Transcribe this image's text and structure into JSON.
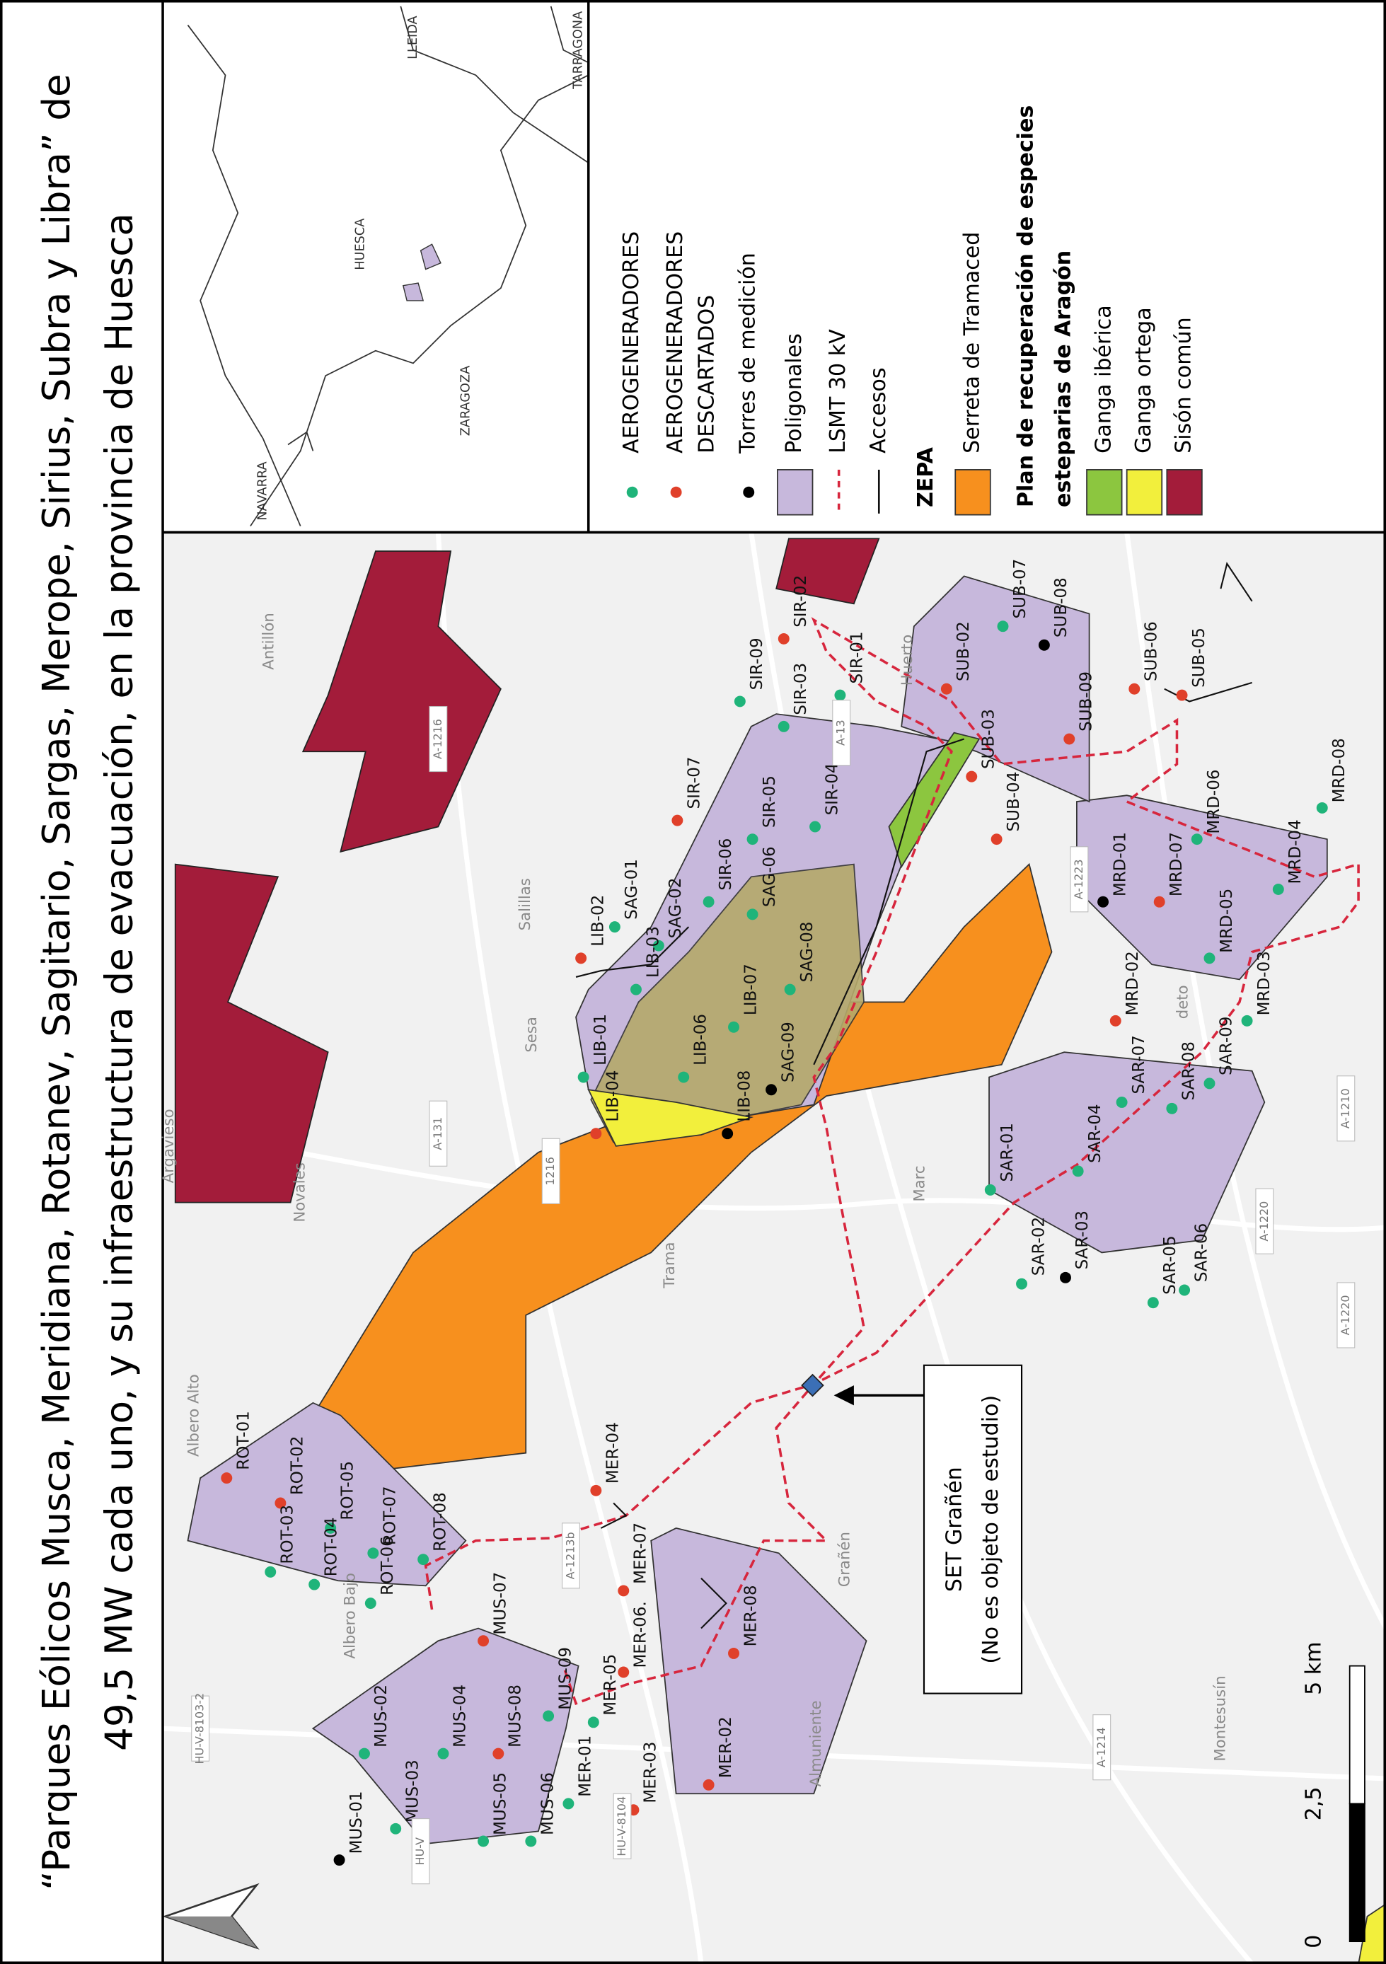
{
  "title": [
    "“Parques Eólicos Musca, Meridiana, Rotanev, Sagitario, Sargas, Merope, Sirius, Subra y Libra” de",
    "49,5 MW cada uno, y su infraestructura de evacuación, en la provincia de Huesca"
  ],
  "inset": {
    "labels": [
      "NAVARRA",
      "ZARAGOZA",
      "HUESCA",
      "LLEIDA",
      "TARRAGONA"
    ]
  },
  "legend": {
    "items": [
      "AEROGENERADORES",
      "AEROGENERADORES",
      "DESCARTADOS",
      "Torres de medición",
      "Poligonales",
      "LSMT 30 kV",
      "Accesos",
      "ZEPA",
      "Serreta de Tramaced",
      "Plan de recuperación de especies",
      "esteparias de Aragón",
      "Ganga ibérica",
      "Ganga ortega",
      "Sisón común"
    ]
  },
  "map": {
    "turbines": [
      "ROT-01",
      "ROT-02",
      "ROT-03",
      "ROT-05",
      "ROT-04",
      "ROT-07",
      "ROT-06",
      "ROT-08",
      "MUS-01",
      "MUS-02",
      "MUS-03",
      "MUS-04",
      "MUS-05",
      "MUS-06",
      "MUS-07",
      "MUS-08",
      "MUS-09",
      "MER-01",
      "MER-02",
      "MER-03",
      "MER-04",
      "MER-05",
      "MER-06.",
      "MER-07",
      "MER-08",
      "SAR-01",
      "SAR-02",
      "SAR-03",
      "SAR-04",
      "SAR-05",
      "SAR-06",
      "SAR-07",
      "SAR-08",
      "SAR-09",
      "MRD-01",
      "MRD-02",
      "MRD-03",
      "MRD-04",
      "MRD-05",
      "MRD-06",
      "MRD-07",
      "MRD-08",
      "SUB-02",
      "SUB-03",
      "SUB-04",
      "SUB-05",
      "SUB-06",
      "SUB-07",
      "SUB-08",
      "SUB-09",
      "SIR-01",
      "SIR-02",
      "SIR-03",
      "SIR-04",
      "SIR-05",
      "SIR-06",
      "SIR-07",
      "SIR-09",
      "SAG-01",
      "SAG-02",
      "SAG-06",
      "SAG-08",
      "SAG-09",
      "LIB-01",
      "LIB-02",
      "LIB-03",
      "LIB-04",
      "LIB-06",
      "LIB-07",
      "LIB-08"
    ],
    "places": [
      "Antillón",
      "Salillas",
      "Sesa",
      "Argavieso",
      "Novales",
      "Albero Alto",
      "Albero Bajo",
      "Trama",
      "Marc",
      "Huerto",
      "Grañén",
      "Almuniente",
      "Montesusín",
      "deto"
    ],
    "roads": [
      "A-1216",
      "A-131",
      "1216",
      "A-1210",
      "A-1220",
      "A-1220",
      "A-1214",
      "HU-V-8103-2",
      "HU-V-8104",
      "A-1213b",
      "A-13",
      "A-1223",
      "HU-V"
    ],
    "set_label": [
      "SET Grañén",
      "(No es objeto de estudio)"
    ],
    "scale": [
      "0",
      "2,5",
      "5 km"
    ]
  }
}
